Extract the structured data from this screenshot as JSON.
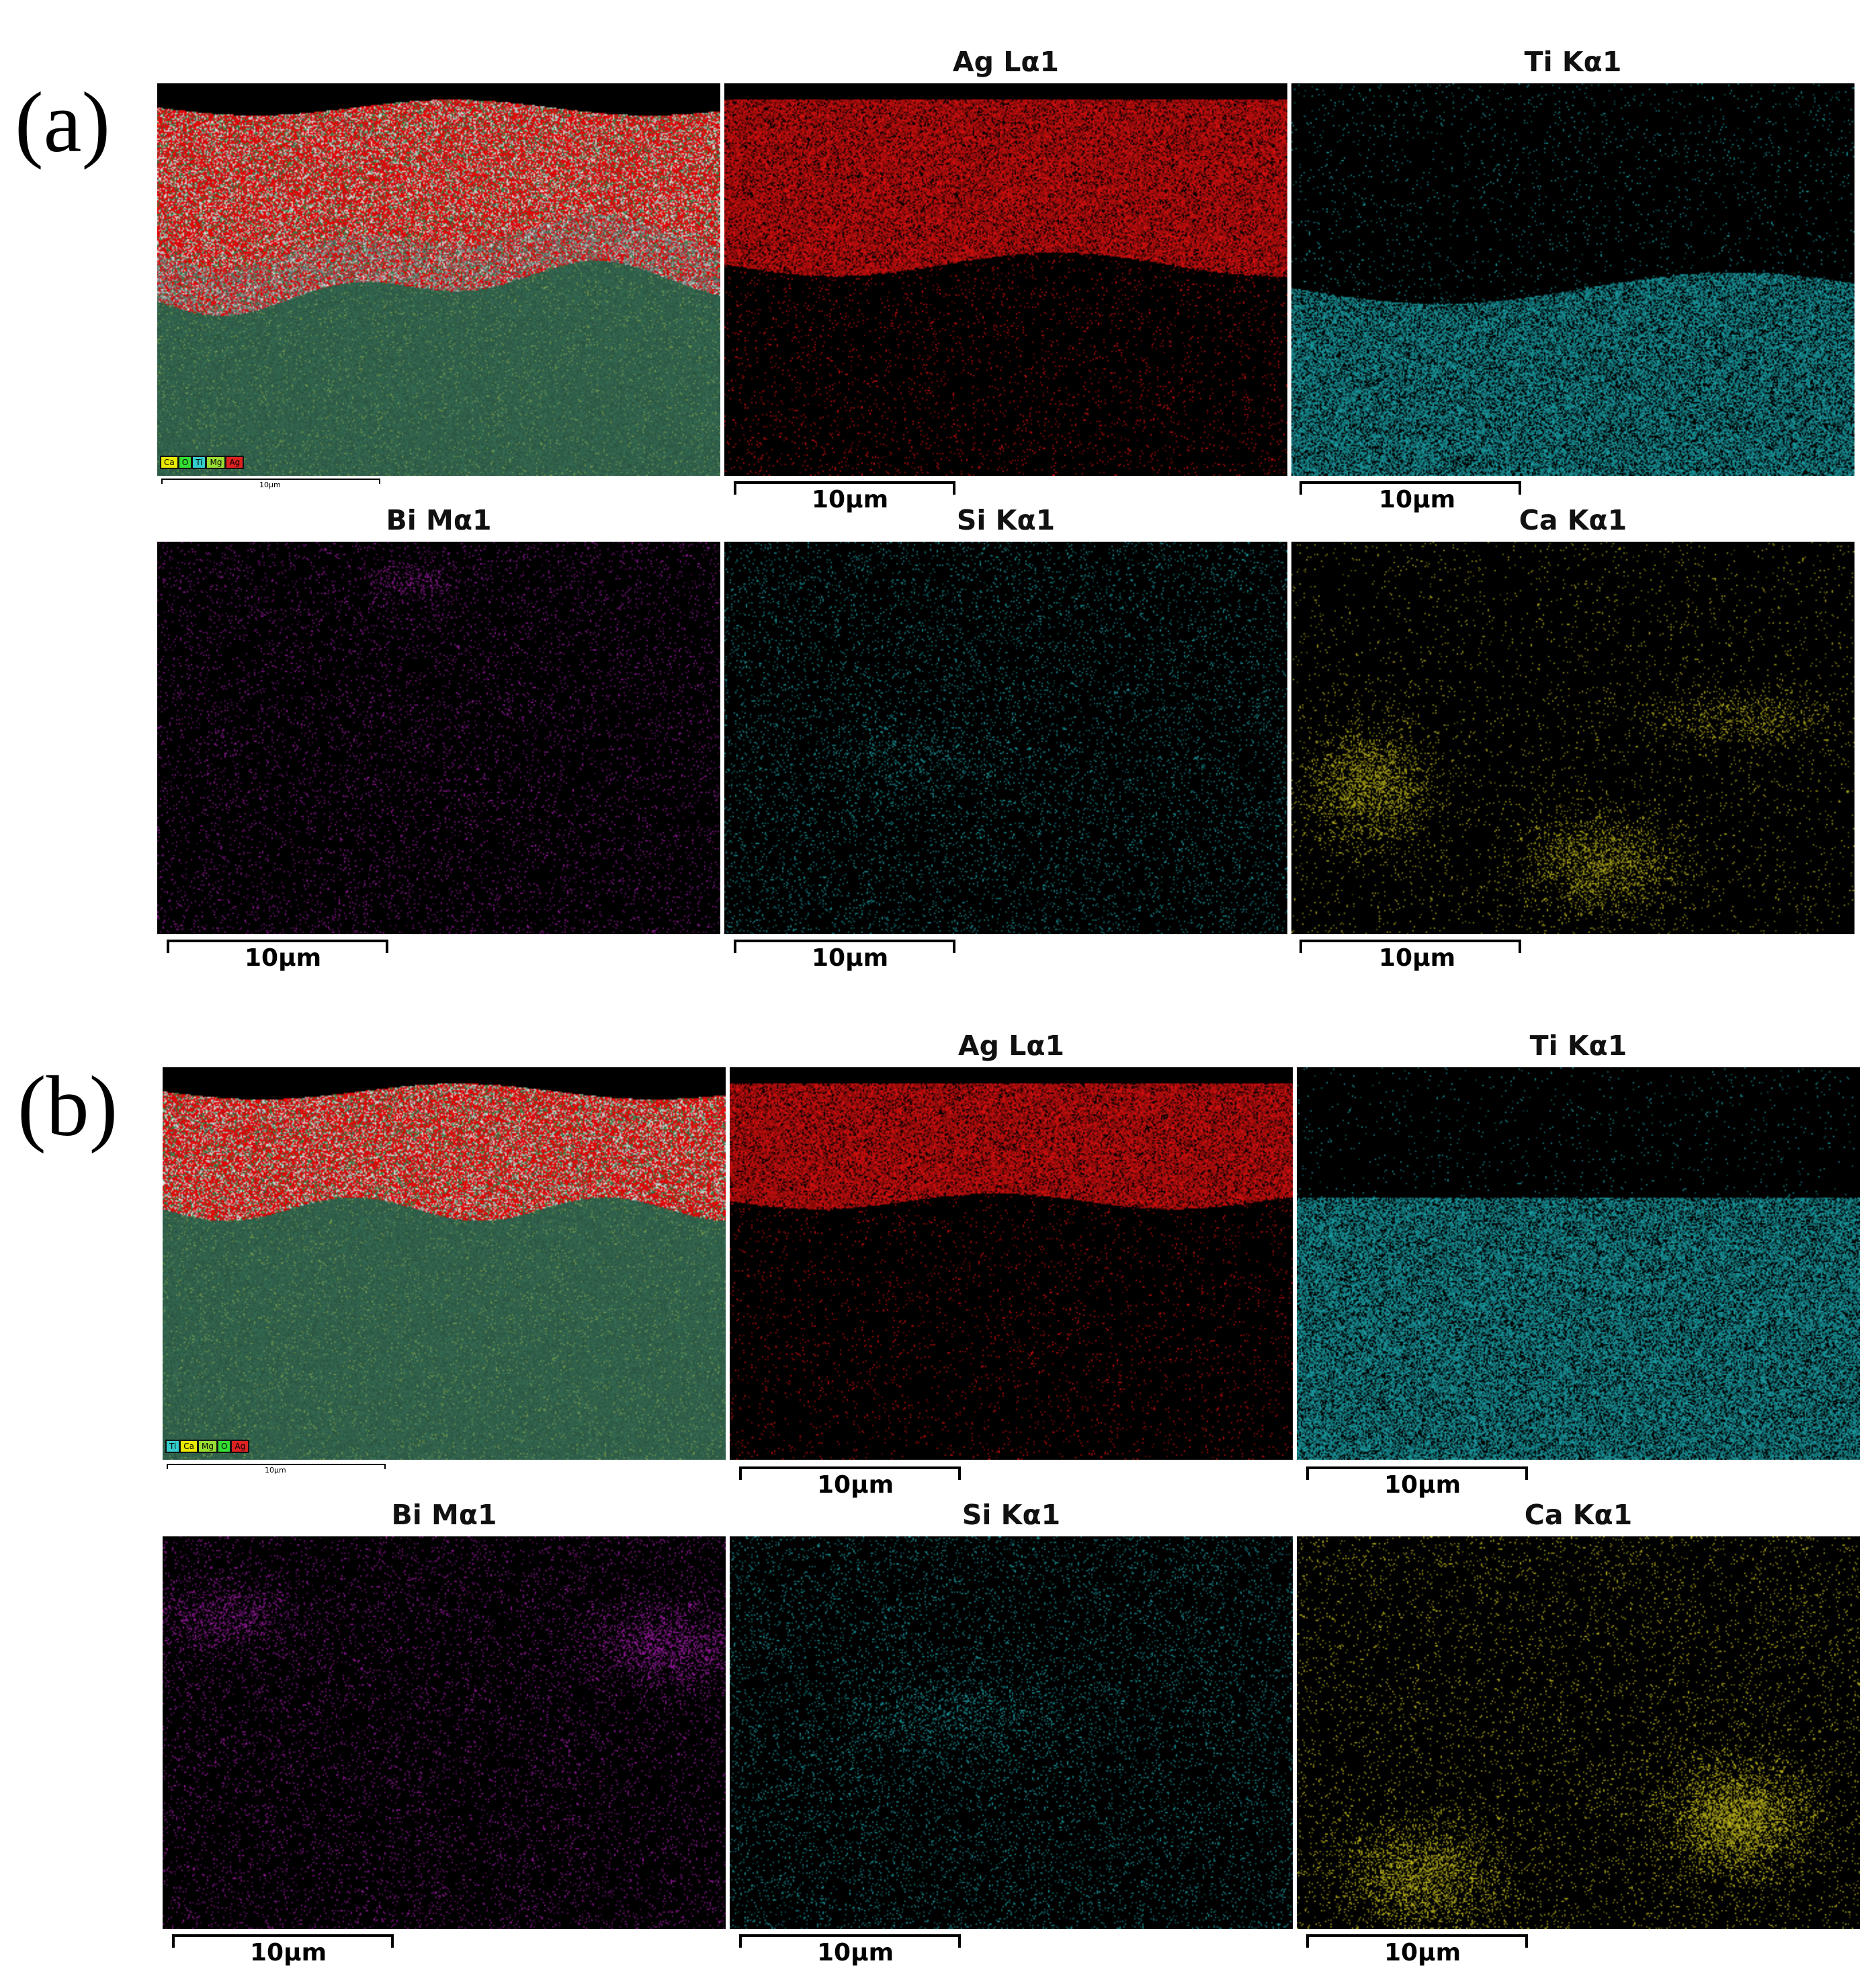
{
  "figure": {
    "panels": [
      {
        "label": "(a)",
        "overlay_legend": [
          {
            "el": "Ca",
            "color": "#e8e800"
          },
          {
            "el": "O",
            "color": "#33dd33"
          },
          {
            "el": "Ti",
            "color": "#33cccc"
          },
          {
            "el": "Mg",
            "color": "#99dd33"
          },
          {
            "el": "Ag",
            "color": "#dd2222"
          }
        ],
        "overlay_scale": "10μm",
        "maps": [
          {
            "title": "Ag Lα1",
            "color": "#e01010",
            "scale": "10μm"
          },
          {
            "title": "Ti Kα1",
            "color": "#20c0c8",
            "scale": "10μm"
          },
          {
            "title": "Bi Mα1",
            "color": "#c020c8",
            "scale": "10μm"
          },
          {
            "title": "Si Kα1",
            "color": "#20c0c8",
            "scale": "10μm"
          },
          {
            "title": "Ca Kα1",
            "color": "#d8d020",
            "scale": "10μm"
          }
        ]
      },
      {
        "label": "(b)",
        "overlay_legend": [
          {
            "el": "Ti",
            "color": "#33cccc"
          },
          {
            "el": "Ca",
            "color": "#e8e800"
          },
          {
            "el": "Mg",
            "color": "#99dd33"
          },
          {
            "el": "O",
            "color": "#33dd33"
          },
          {
            "el": "Ag",
            "color": "#dd2222"
          }
        ],
        "overlay_scale": "10μm",
        "maps": [
          {
            "title": "Ag Lα1",
            "color": "#e01010",
            "scale": "10μm"
          },
          {
            "title": "Ti Kα1",
            "color": "#20c0c8",
            "scale": "10μm"
          },
          {
            "title": "Bi Mα1",
            "color": "#c020c8",
            "scale": "10μm"
          },
          {
            "title": "Si Kα1",
            "color": "#20c0c8",
            "scale": "10μm"
          },
          {
            "title": "Ca Kα1",
            "color": "#d8d020",
            "scale": "10μm"
          }
        ]
      }
    ]
  }
}
